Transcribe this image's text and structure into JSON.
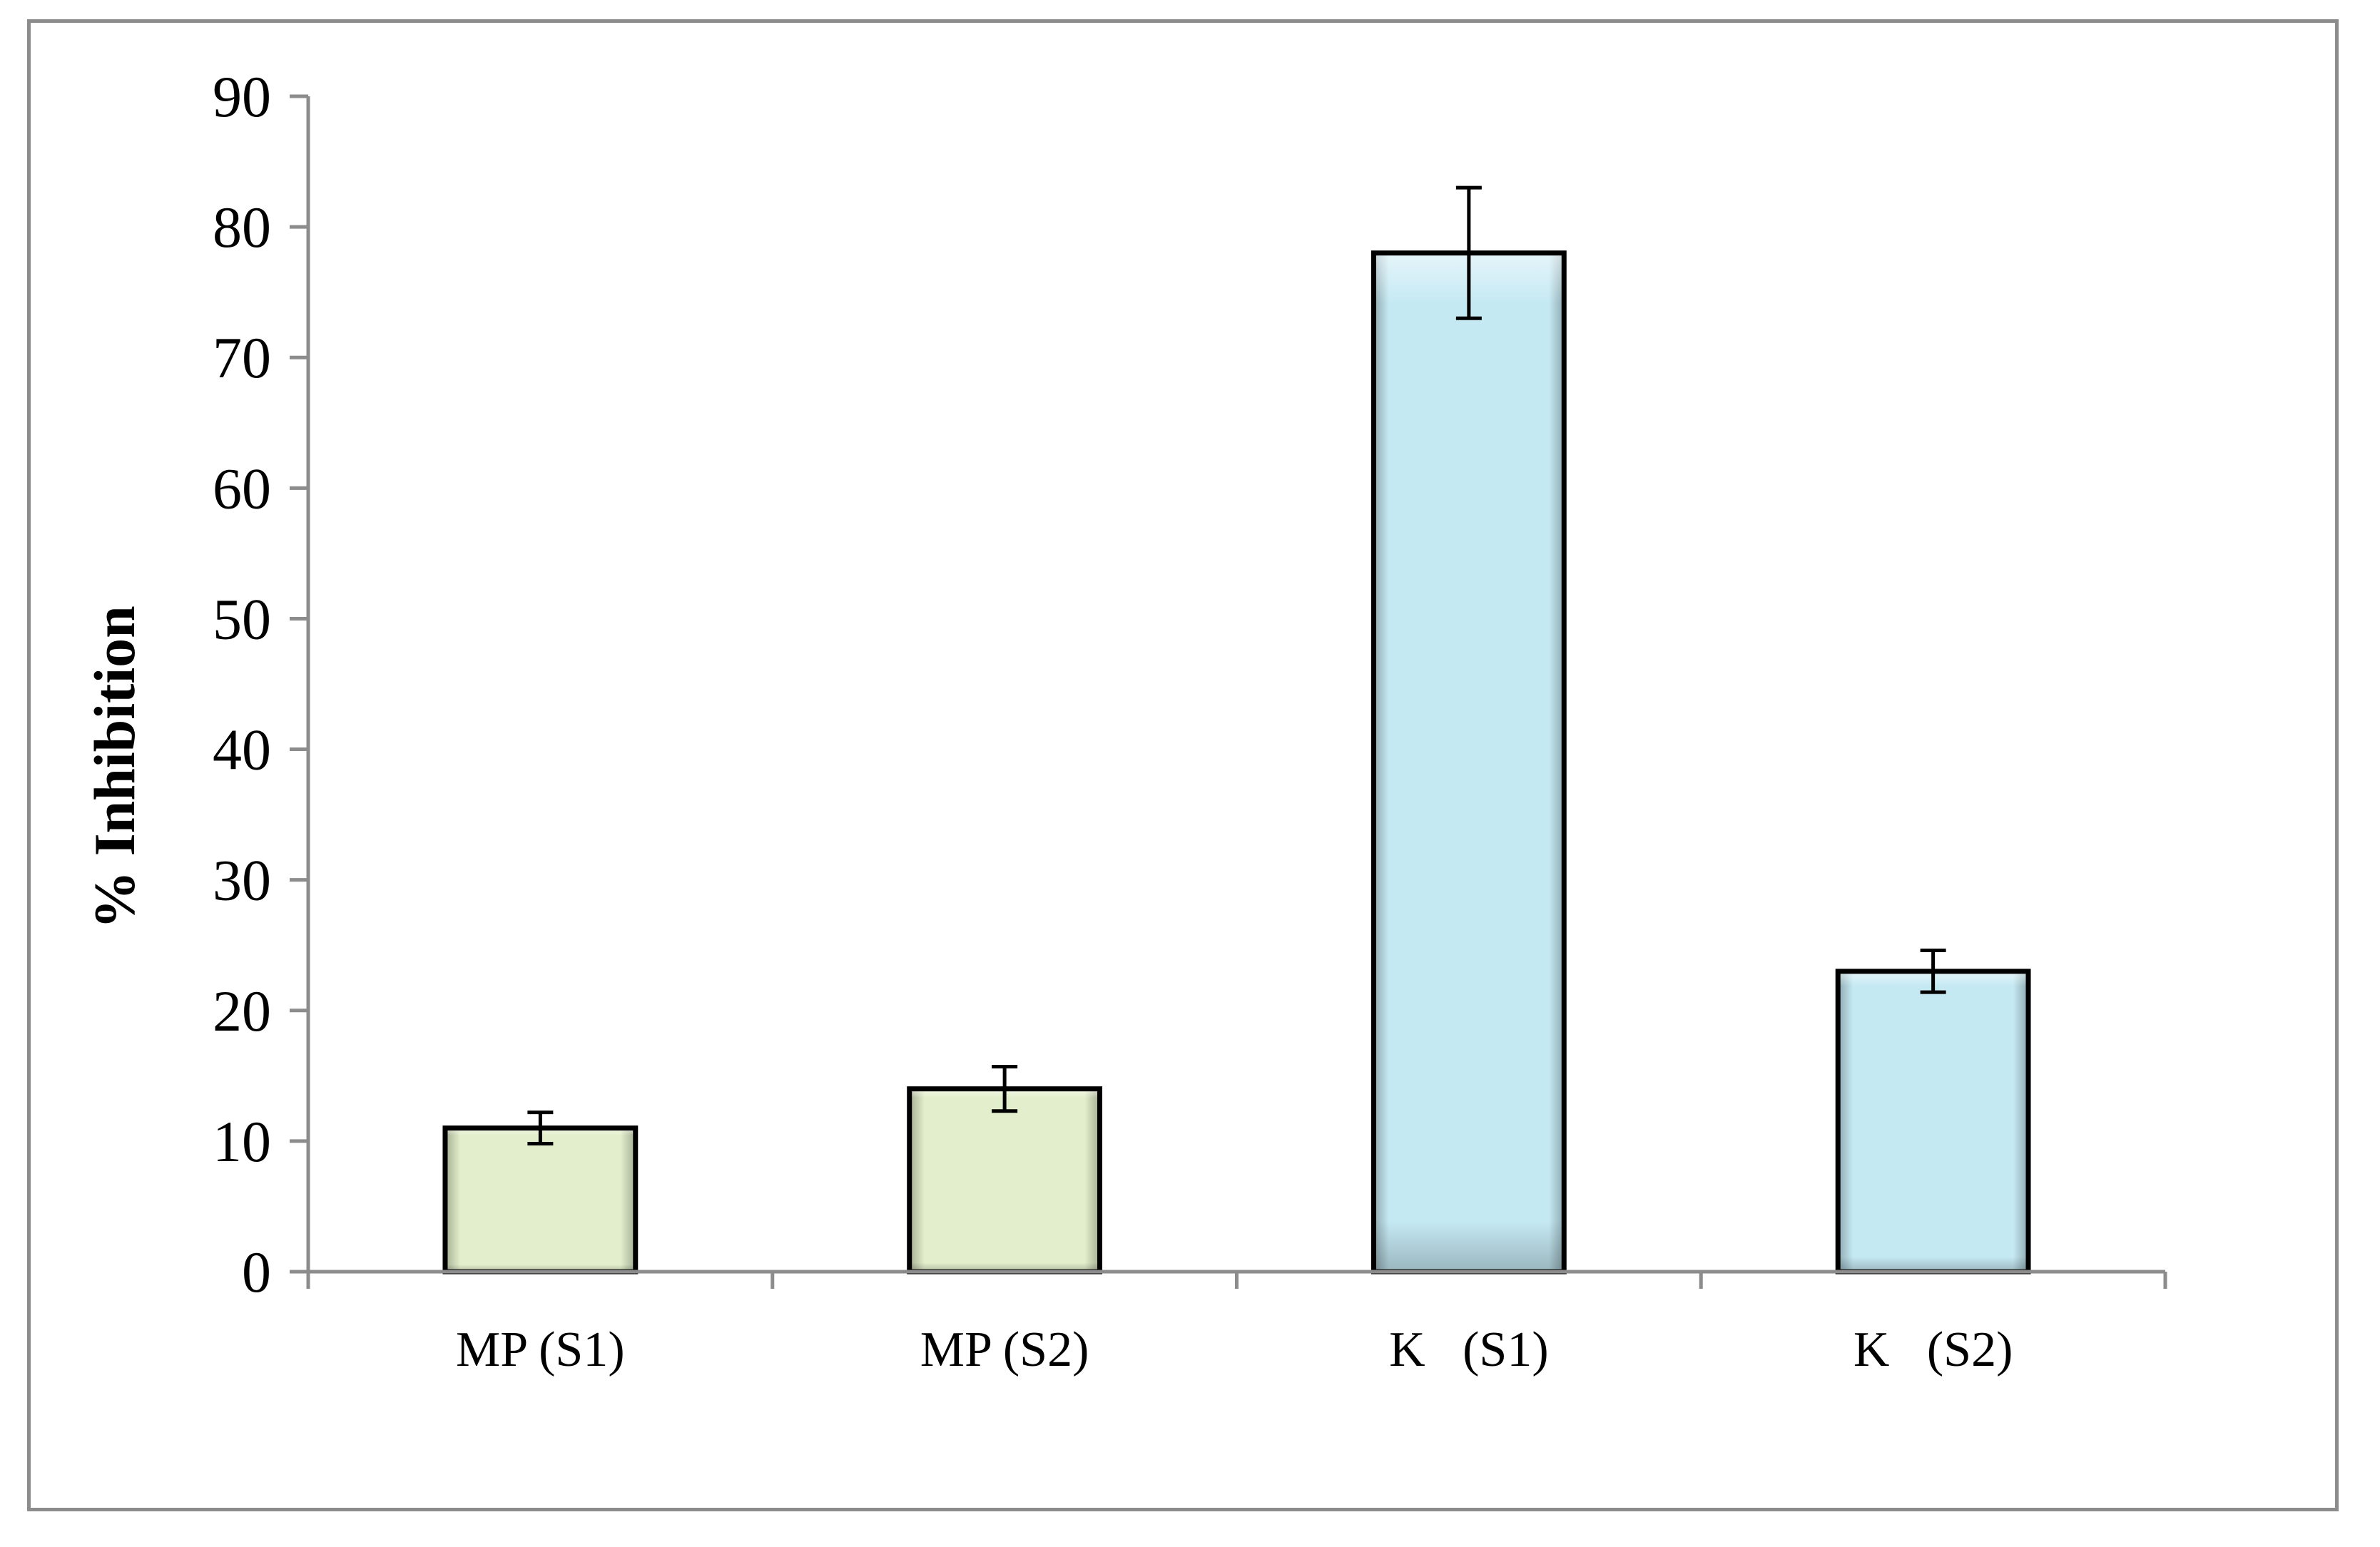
{
  "chart_data": {
    "type": "bar",
    "title": "",
    "xlabel": "",
    "ylabel": "% Inhibition",
    "ylim": [
      0,
      90
    ],
    "yticks": [
      0,
      10,
      20,
      30,
      40,
      50,
      60,
      70,
      80,
      90
    ],
    "grid": false,
    "legend": "none",
    "categories": [
      "MP (S1)",
      "MP (S2)",
      "K   (S1)",
      "K   (S2)"
    ],
    "values": [
      11,
      14,
      78,
      23
    ],
    "errors": [
      1.2,
      1.7,
      5,
      1.6
    ],
    "colors": [
      "#e3efcc",
      "#e3efcc",
      "#c5e9f3",
      "#c5e9f3"
    ],
    "axis_color": "#8c8c8c",
    "bar_outline_color": "#000000"
  }
}
